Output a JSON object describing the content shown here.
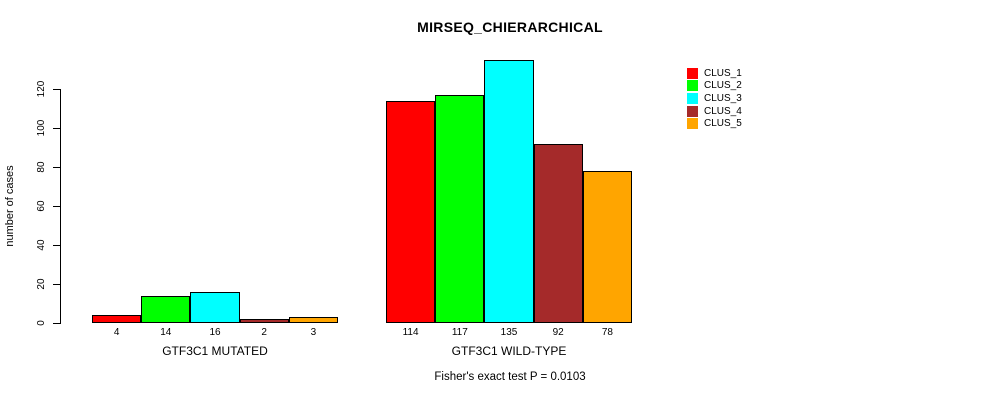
{
  "chart_data": {
    "type": "bar",
    "title": "MIRSEQ_CHIERARCHICAL",
    "xlabel": "",
    "ylabel": "number of cases",
    "ylim": [
      0,
      120
    ],
    "yticks": [
      0,
      20,
      40,
      60,
      80,
      100,
      120
    ],
    "categories": [
      "GTF3C1 MUTATED",
      "GTF3C1 WILD-TYPE"
    ],
    "series": [
      {
        "name": "CLUS_1",
        "color": "#FF0000",
        "values": [
          4,
          114
        ]
      },
      {
        "name": "CLUS_2",
        "color": "#00FF00",
        "values": [
          14,
          117
        ]
      },
      {
        "name": "CLUS_3",
        "color": "#00FFFF",
        "values": [
          16,
          135
        ]
      },
      {
        "name": "CLUS_4",
        "color": "#A52A2A",
        "values": [
          2,
          92
        ]
      },
      {
        "name": "CLUS_5",
        "color": "#FFA500",
        "values": [
          3,
          78
        ]
      }
    ],
    "value_labels_shown": true,
    "grid": false,
    "bar_border_color": "#000000",
    "legend_position": "top-right",
    "annotation": "Fisher's exact test P = 0.0103"
  }
}
